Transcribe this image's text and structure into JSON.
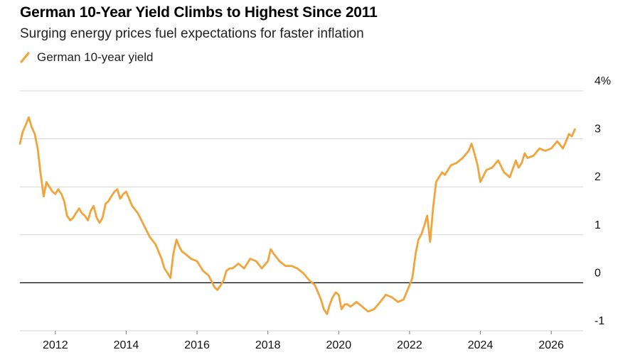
{
  "title": "German 10-Year Yield Climbs to Highest Since 2011",
  "subtitle": "Surging energy prices fuel expectations for faster inflation",
  "legend": {
    "label": "German 10-year yield"
  },
  "colors": {
    "series": "#f2a43c",
    "grid": "#d6d6d6",
    "zero_line": "#000000"
  },
  "chart_data": {
    "type": "line",
    "title": "German 10-Year Yield Climbs to Highest Since 2011",
    "subtitle": "Surging energy prices fuel expectations for faster inflation",
    "xlabel": "",
    "ylabel": "",
    "ylim": [
      -1,
      4
    ],
    "xlim": [
      2011.0,
      2026.9
    ],
    "y_ticks": [
      {
        "value": -1,
        "label": "-1"
      },
      {
        "value": 0,
        "label": "0"
      },
      {
        "value": 1,
        "label": "1"
      },
      {
        "value": 2,
        "label": "2"
      },
      {
        "value": 3,
        "label": "3"
      },
      {
        "value": 4,
        "label": "4%"
      }
    ],
    "x_ticks": [
      {
        "value": 2012,
        "label": "2012"
      },
      {
        "value": 2014,
        "label": "2014"
      },
      {
        "value": 2016,
        "label": "2016"
      },
      {
        "value": 2018,
        "label": "2018"
      },
      {
        "value": 2020,
        "label": "2020"
      },
      {
        "value": 2022,
        "label": "2022"
      },
      {
        "value": 2024,
        "label": "2024"
      },
      {
        "value": 2026,
        "label": "2026"
      }
    ],
    "grid": true,
    "legend_position": "top-left",
    "series": [
      {
        "name": "German 10-year yield",
        "x": [
          2011.0,
          2011.08,
          2011.17,
          2011.25,
          2011.33,
          2011.42,
          2011.5,
          2011.58,
          2011.67,
          2011.75,
          2011.83,
          2011.92,
          2012.0,
          2012.08,
          2012.17,
          2012.25,
          2012.33,
          2012.42,
          2012.5,
          2012.58,
          2012.67,
          2012.75,
          2012.83,
          2012.92,
          2013.0,
          2013.08,
          2013.17,
          2013.25,
          2013.33,
          2013.42,
          2013.5,
          2013.58,
          2013.67,
          2013.75,
          2013.83,
          2013.92,
          2014.0,
          2014.17,
          2014.33,
          2014.5,
          2014.67,
          2014.83,
          2015.0,
          2015.08,
          2015.17,
          2015.25,
          2015.33,
          2015.42,
          2015.5,
          2015.58,
          2015.67,
          2015.75,
          2015.83,
          2016.0,
          2016.17,
          2016.33,
          2016.5,
          2016.58,
          2016.67,
          2016.75,
          2016.83,
          2016.92,
          2017.0,
          2017.17,
          2017.33,
          2017.5,
          2017.67,
          2017.83,
          2018.0,
          2018.08,
          2018.17,
          2018.33,
          2018.5,
          2018.67,
          2018.83,
          2019.0,
          2019.17,
          2019.33,
          2019.5,
          2019.58,
          2019.67,
          2019.75,
          2019.83,
          2019.92,
          2020.0,
          2020.08,
          2020.17,
          2020.25,
          2020.33,
          2020.5,
          2020.67,
          2020.83,
          2021.0,
          2021.17,
          2021.33,
          2021.5,
          2021.67,
          2021.83,
          2022.0,
          2022.08,
          2022.17,
          2022.25,
          2022.33,
          2022.42,
          2022.5,
          2022.58,
          2022.67,
          2022.75,
          2022.83,
          2022.92,
          2023.0,
          2023.17,
          2023.33,
          2023.5,
          2023.67,
          2023.75,
          2023.83,
          2023.92,
          2024.0,
          2024.17,
          2024.33,
          2024.5,
          2024.67,
          2024.83,
          2025.0,
          2025.08,
          2025.17,
          2025.25,
          2025.33,
          2025.5,
          2025.67,
          2025.83,
          2026.0,
          2026.17,
          2026.33,
          2026.42,
          2026.5,
          2026.58,
          2026.67
        ],
        "values": [
          2.9,
          3.15,
          3.3,
          3.45,
          3.25,
          3.1,
          2.8,
          2.3,
          1.8,
          2.1,
          2.0,
          1.9,
          1.85,
          1.95,
          1.85,
          1.7,
          1.4,
          1.3,
          1.35,
          1.45,
          1.55,
          1.45,
          1.4,
          1.3,
          1.5,
          1.6,
          1.35,
          1.25,
          1.35,
          1.65,
          1.7,
          1.8,
          1.9,
          1.95,
          1.75,
          1.85,
          1.9,
          1.6,
          1.45,
          1.2,
          0.95,
          0.8,
          0.5,
          0.3,
          0.2,
          0.1,
          0.6,
          0.9,
          0.75,
          0.65,
          0.6,
          0.55,
          0.5,
          0.45,
          0.25,
          0.15,
          -0.1,
          -0.15,
          -0.05,
          0.05,
          0.25,
          0.3,
          0.3,
          0.4,
          0.3,
          0.5,
          0.45,
          0.3,
          0.45,
          0.7,
          0.6,
          0.45,
          0.35,
          0.35,
          0.3,
          0.2,
          0.05,
          -0.05,
          -0.35,
          -0.55,
          -0.65,
          -0.45,
          -0.3,
          -0.2,
          -0.25,
          -0.55,
          -0.45,
          -0.45,
          -0.5,
          -0.4,
          -0.5,
          -0.6,
          -0.55,
          -0.4,
          -0.25,
          -0.3,
          -0.4,
          -0.35,
          -0.05,
          0.1,
          0.6,
          0.9,
          1.0,
          1.2,
          1.4,
          0.85,
          1.6,
          2.1,
          2.2,
          2.3,
          2.25,
          2.45,
          2.5,
          2.6,
          2.75,
          2.9,
          2.7,
          2.45,
          2.1,
          2.35,
          2.4,
          2.55,
          2.3,
          2.2,
          2.55,
          2.4,
          2.5,
          2.7,
          2.6,
          2.65,
          2.8,
          2.75,
          2.8,
          2.95,
          2.8,
          2.95,
          3.1,
          3.05,
          3.2
        ]
      }
    ]
  }
}
